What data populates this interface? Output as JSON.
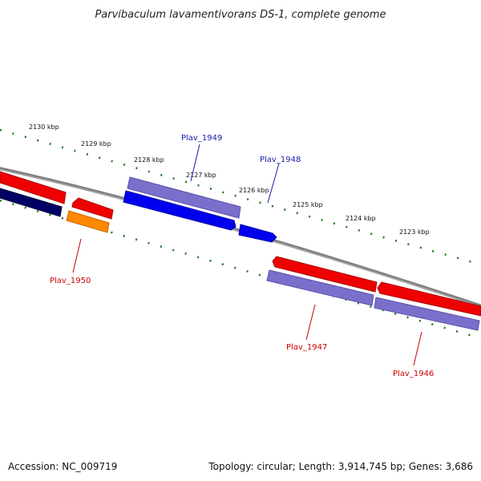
{
  "title": "Parvibaculum lavamentivorans DS-1, complete genome",
  "footer": {
    "accession": "Accession: NC_009719",
    "summary": "Topology: circular; Length: 3,914,745 bp; Genes: 3,686"
  },
  "colors": {
    "backbone": "#808080",
    "tick": "#1a7a1a",
    "forward_label": "#1a1aaa",
    "reverse_label": "#cc0000"
  },
  "ticks": [
    {
      "label": "2130 kbp"
    },
    {
      "label": "2129 kbp"
    },
    {
      "label": "2128 kbp"
    },
    {
      "label": "2127 kbp"
    },
    {
      "label": "2126 kbp"
    },
    {
      "label": "2125 kbp"
    },
    {
      "label": "2124 kbp"
    },
    {
      "label": "2123 kbp"
    }
  ],
  "gene_labels": [
    {
      "text": "Plav_1949"
    },
    {
      "text": "Plav_1948"
    },
    {
      "text": "Plav_1950"
    },
    {
      "text": "Plav_1947"
    },
    {
      "text": "Plav_1946"
    }
  ]
}
